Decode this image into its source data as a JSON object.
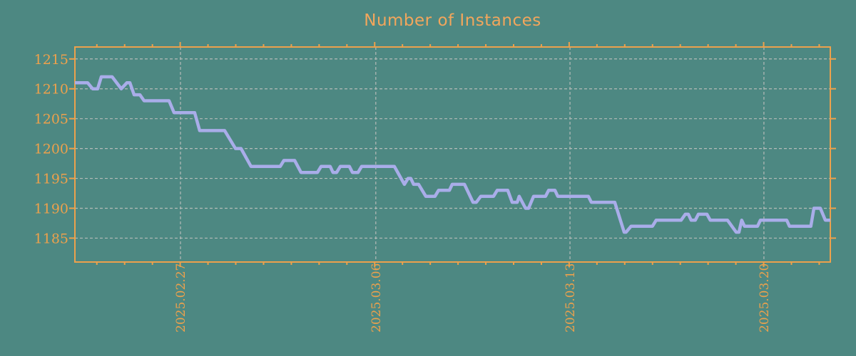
{
  "page": {
    "background": "#4d8882"
  },
  "chart_data": {
    "type": "line",
    "title": "Number of Instances",
    "legend": null,
    "grid": "dashed",
    "colors": {
      "background": "#4d8882",
      "axis_frame": "#eda14c",
      "tick_labels": "#eda14c",
      "title": "#f2a65c",
      "line": "#a9ade9",
      "gridline": "#b5bbb8"
    },
    "x_axis": {
      "unit": "date",
      "span_days": 27.19,
      "tick_labels": [
        "2025.02.27",
        "2025.03.06",
        "2025.03.13",
        "2025.03.20"
      ],
      "major_tick_days": [
        3.8,
        10.83,
        17.82,
        24.8
      ],
      "minor_tick_start_day": 0.79,
      "minor_tick_interval_days": 1,
      "minor_tick_count": 27,
      "vertical_gridlines_at_major": true
    },
    "y_axis": {
      "min": 1181,
      "max": 1217,
      "tick_values": [
        1185,
        1190,
        1195,
        1200,
        1205,
        1210,
        1215
      ]
    },
    "series": [
      {
        "name": "instances",
        "points": [
          [
            0,
            1211
          ],
          [
            0.46,
            1211
          ],
          [
            0.64,
            1210
          ],
          [
            0.82,
            1210
          ],
          [
            0.95,
            1212
          ],
          [
            1.34,
            1212
          ],
          [
            1.67,
            1210
          ],
          [
            1.87,
            1211
          ],
          [
            1.98,
            1211
          ],
          [
            2.13,
            1209
          ],
          [
            2.34,
            1209
          ],
          [
            2.49,
            1208
          ],
          [
            3.39,
            1208
          ],
          [
            3.57,
            1206
          ],
          [
            4.31,
            1206
          ],
          [
            4.49,
            1203
          ],
          [
            5.39,
            1203
          ],
          [
            5.78,
            1200
          ],
          [
            5.98,
            1200
          ],
          [
            6.34,
            1197
          ],
          [
            7.39,
            1197
          ],
          [
            7.52,
            1198
          ],
          [
            7.91,
            1198
          ],
          [
            8.14,
            1196
          ],
          [
            8.73,
            1196
          ],
          [
            8.86,
            1197
          ],
          [
            9.19,
            1197
          ],
          [
            9.29,
            1196
          ],
          [
            9.42,
            1196
          ],
          [
            9.55,
            1197
          ],
          [
            9.88,
            1197
          ],
          [
            9.99,
            1196
          ],
          [
            10.19,
            1196
          ],
          [
            10.32,
            1197
          ],
          [
            11.5,
            1197
          ],
          [
            11.86,
            1194
          ],
          [
            11.99,
            1195
          ],
          [
            12.09,
            1195
          ],
          [
            12.19,
            1194
          ],
          [
            12.37,
            1194
          ],
          [
            12.63,
            1192
          ],
          [
            12.96,
            1192
          ],
          [
            13.09,
            1193
          ],
          [
            13.48,
            1193
          ],
          [
            13.58,
            1194
          ],
          [
            14.02,
            1194
          ],
          [
            14.33,
            1191
          ],
          [
            14.45,
            1191
          ],
          [
            14.61,
            1192
          ],
          [
            15.07,
            1192
          ],
          [
            15.2,
            1193
          ],
          [
            15.58,
            1193
          ],
          [
            15.74,
            1191
          ],
          [
            15.92,
            1191
          ],
          [
            15.99,
            1192
          ],
          [
            16.22,
            1190
          ],
          [
            16.33,
            1190
          ],
          [
            16.51,
            1192
          ],
          [
            16.94,
            1192
          ],
          [
            17.05,
            1193
          ],
          [
            17.28,
            1193
          ],
          [
            17.38,
            1192
          ],
          [
            18.48,
            1192
          ],
          [
            18.59,
            1191
          ],
          [
            19.43,
            1191
          ],
          [
            19.77,
            1186
          ],
          [
            19.84,
            1186
          ],
          [
            20.02,
            1187
          ],
          [
            20.79,
            1187
          ],
          [
            20.92,
            1188
          ],
          [
            21.82,
            1188
          ],
          [
            21.97,
            1189
          ],
          [
            22.08,
            1189
          ],
          [
            22.18,
            1188
          ],
          [
            22.33,
            1188
          ],
          [
            22.44,
            1189
          ],
          [
            22.75,
            1189
          ],
          [
            22.87,
            1188
          ],
          [
            23.49,
            1188
          ],
          [
            23.8,
            1186
          ],
          [
            23.9,
            1186
          ],
          [
            24.0,
            1188
          ],
          [
            24.1,
            1187
          ],
          [
            24.57,
            1187
          ],
          [
            24.67,
            1188
          ],
          [
            25.62,
            1188
          ],
          [
            25.72,
            1187
          ],
          [
            26.49,
            1187
          ],
          [
            26.6,
            1190
          ],
          [
            26.83,
            1190
          ],
          [
            27.01,
            1188
          ],
          [
            27.19,
            1188
          ]
        ]
      }
    ]
  }
}
